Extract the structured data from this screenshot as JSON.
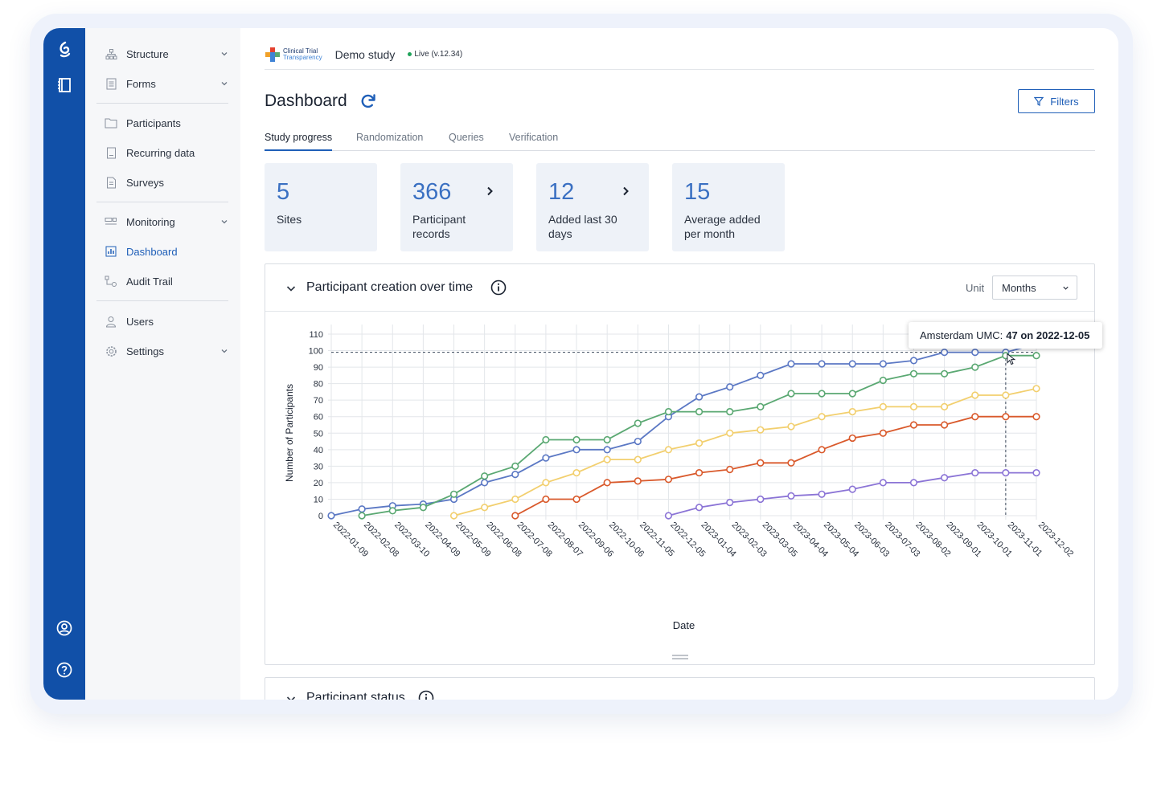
{
  "sidebar": {
    "items": [
      {
        "label": "Structure"
      },
      {
        "label": "Forms"
      },
      {
        "label": "Participants"
      },
      {
        "label": "Recurring data"
      },
      {
        "label": "Surveys"
      },
      {
        "label": "Monitoring"
      },
      {
        "label": "Dashboard"
      },
      {
        "label": "Audit Trail"
      },
      {
        "label": "Users"
      },
      {
        "label": "Settings"
      }
    ]
  },
  "header": {
    "brand_line1": "Clinical Trial",
    "brand_line2": "Transparency",
    "study_name": "Demo study",
    "status": "Live (v.12.34)"
  },
  "page": {
    "title": "Dashboard",
    "filters_label": "Filters"
  },
  "tabs": [
    {
      "label": "Study progress"
    },
    {
      "label": "Randomization"
    },
    {
      "label": "Queries"
    },
    {
      "label": "Verification"
    }
  ],
  "stats": [
    {
      "value": "5",
      "label": "Sites"
    },
    {
      "value": "366",
      "label": "Participant records"
    },
    {
      "value": "12",
      "label": "Added last 30 days"
    },
    {
      "value": "15",
      "label": "Average added per month"
    }
  ],
  "panel": {
    "title": "Participant creation over time",
    "unit_label": "Unit",
    "unit_value": "Months"
  },
  "tooltip": {
    "site": "Amsterdam UMC:",
    "value_text": "47 on 2022-12-05"
  },
  "panel2": {
    "title": "Participant status"
  },
  "colors": {
    "accent": "#1f5fb8",
    "rail": "#1150a8"
  },
  "chart_data": {
    "type": "line",
    "xlabel": "Date",
    "ylabel": "Number of Participants",
    "ylim": [
      0,
      110
    ],
    "yticks": [
      0,
      10,
      20,
      30,
      40,
      50,
      60,
      70,
      80,
      90,
      100,
      110
    ],
    "x": [
      "2022-01-09",
      "2022-02-08",
      "2022-03-10",
      "2022-04-09",
      "2022-05-09",
      "2022-06-08",
      "2022-07-08",
      "2022-08-07",
      "2022-09-06",
      "2022-10-06",
      "2022-11-05",
      "2022-12-05",
      "2023-01-04",
      "2023-02-03",
      "2023-03-05",
      "2023-04-04",
      "2023-05-04",
      "2023-06-03",
      "2023-07-03",
      "2023-08-02",
      "2023-09-01",
      "2023-10-01",
      "2023-11-01",
      "2023-12-02"
    ],
    "grid": true,
    "series": [
      {
        "color": "#5b78c4",
        "values": [
          0,
          4,
          6,
          7,
          10,
          20,
          25,
          35,
          40,
          40,
          45,
          60,
          72,
          78,
          85,
          92,
          92,
          92,
          92,
          94,
          99,
          99,
          99,
          104
        ]
      },
      {
        "color": "#5aa872",
        "values": [
          null,
          0,
          3,
          5,
          13,
          24,
          30,
          46,
          46,
          46,
          56,
          63,
          63,
          63,
          66,
          74,
          74,
          74,
          82,
          86,
          86,
          90,
          97,
          97
        ]
      },
      {
        "color": "#f2cf6e",
        "values": [
          null,
          null,
          null,
          null,
          0,
          5,
          10,
          20,
          26,
          34,
          34,
          40,
          44,
          50,
          52,
          54,
          60,
          63,
          66,
          66,
          66,
          73,
          73,
          77
        ]
      },
      {
        "color": "#d9592b",
        "values": [
          null,
          null,
          null,
          null,
          null,
          null,
          0,
          10,
          10,
          20,
          21,
          22,
          26,
          28,
          32,
          32,
          40,
          47,
          50,
          55,
          55,
          60,
          60,
          60
        ]
      },
      {
        "color": "#8b74d6",
        "values": [
          null,
          null,
          null,
          null,
          null,
          null,
          null,
          null,
          null,
          null,
          null,
          0,
          5,
          8,
          10,
          12,
          13,
          16,
          20,
          20,
          23,
          26,
          26,
          26
        ]
      }
    ],
    "highlight": {
      "x": "2023-11-01",
      "y": 99
    }
  }
}
